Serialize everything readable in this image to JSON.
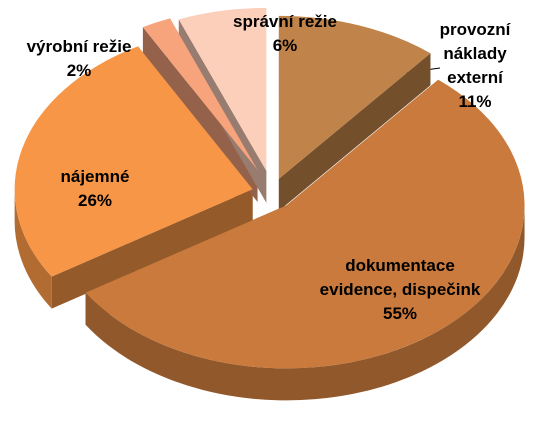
{
  "chart_data": {
    "type": "pie",
    "categories": [
      "provozní náklady externí",
      "dokumentace evidence, dispečink",
      "nájemné",
      "výrobní režie",
      "správní režie"
    ],
    "values": [
      11,
      55,
      26,
      2,
      6
    ],
    "value_labels": [
      "11%",
      "55%",
      "26%",
      "2%",
      "6%"
    ],
    "colors": [
      "#c0834a",
      "#c97a3c",
      "#f79646",
      "#f7a47c",
      "#fbcfb9"
    ]
  }
}
